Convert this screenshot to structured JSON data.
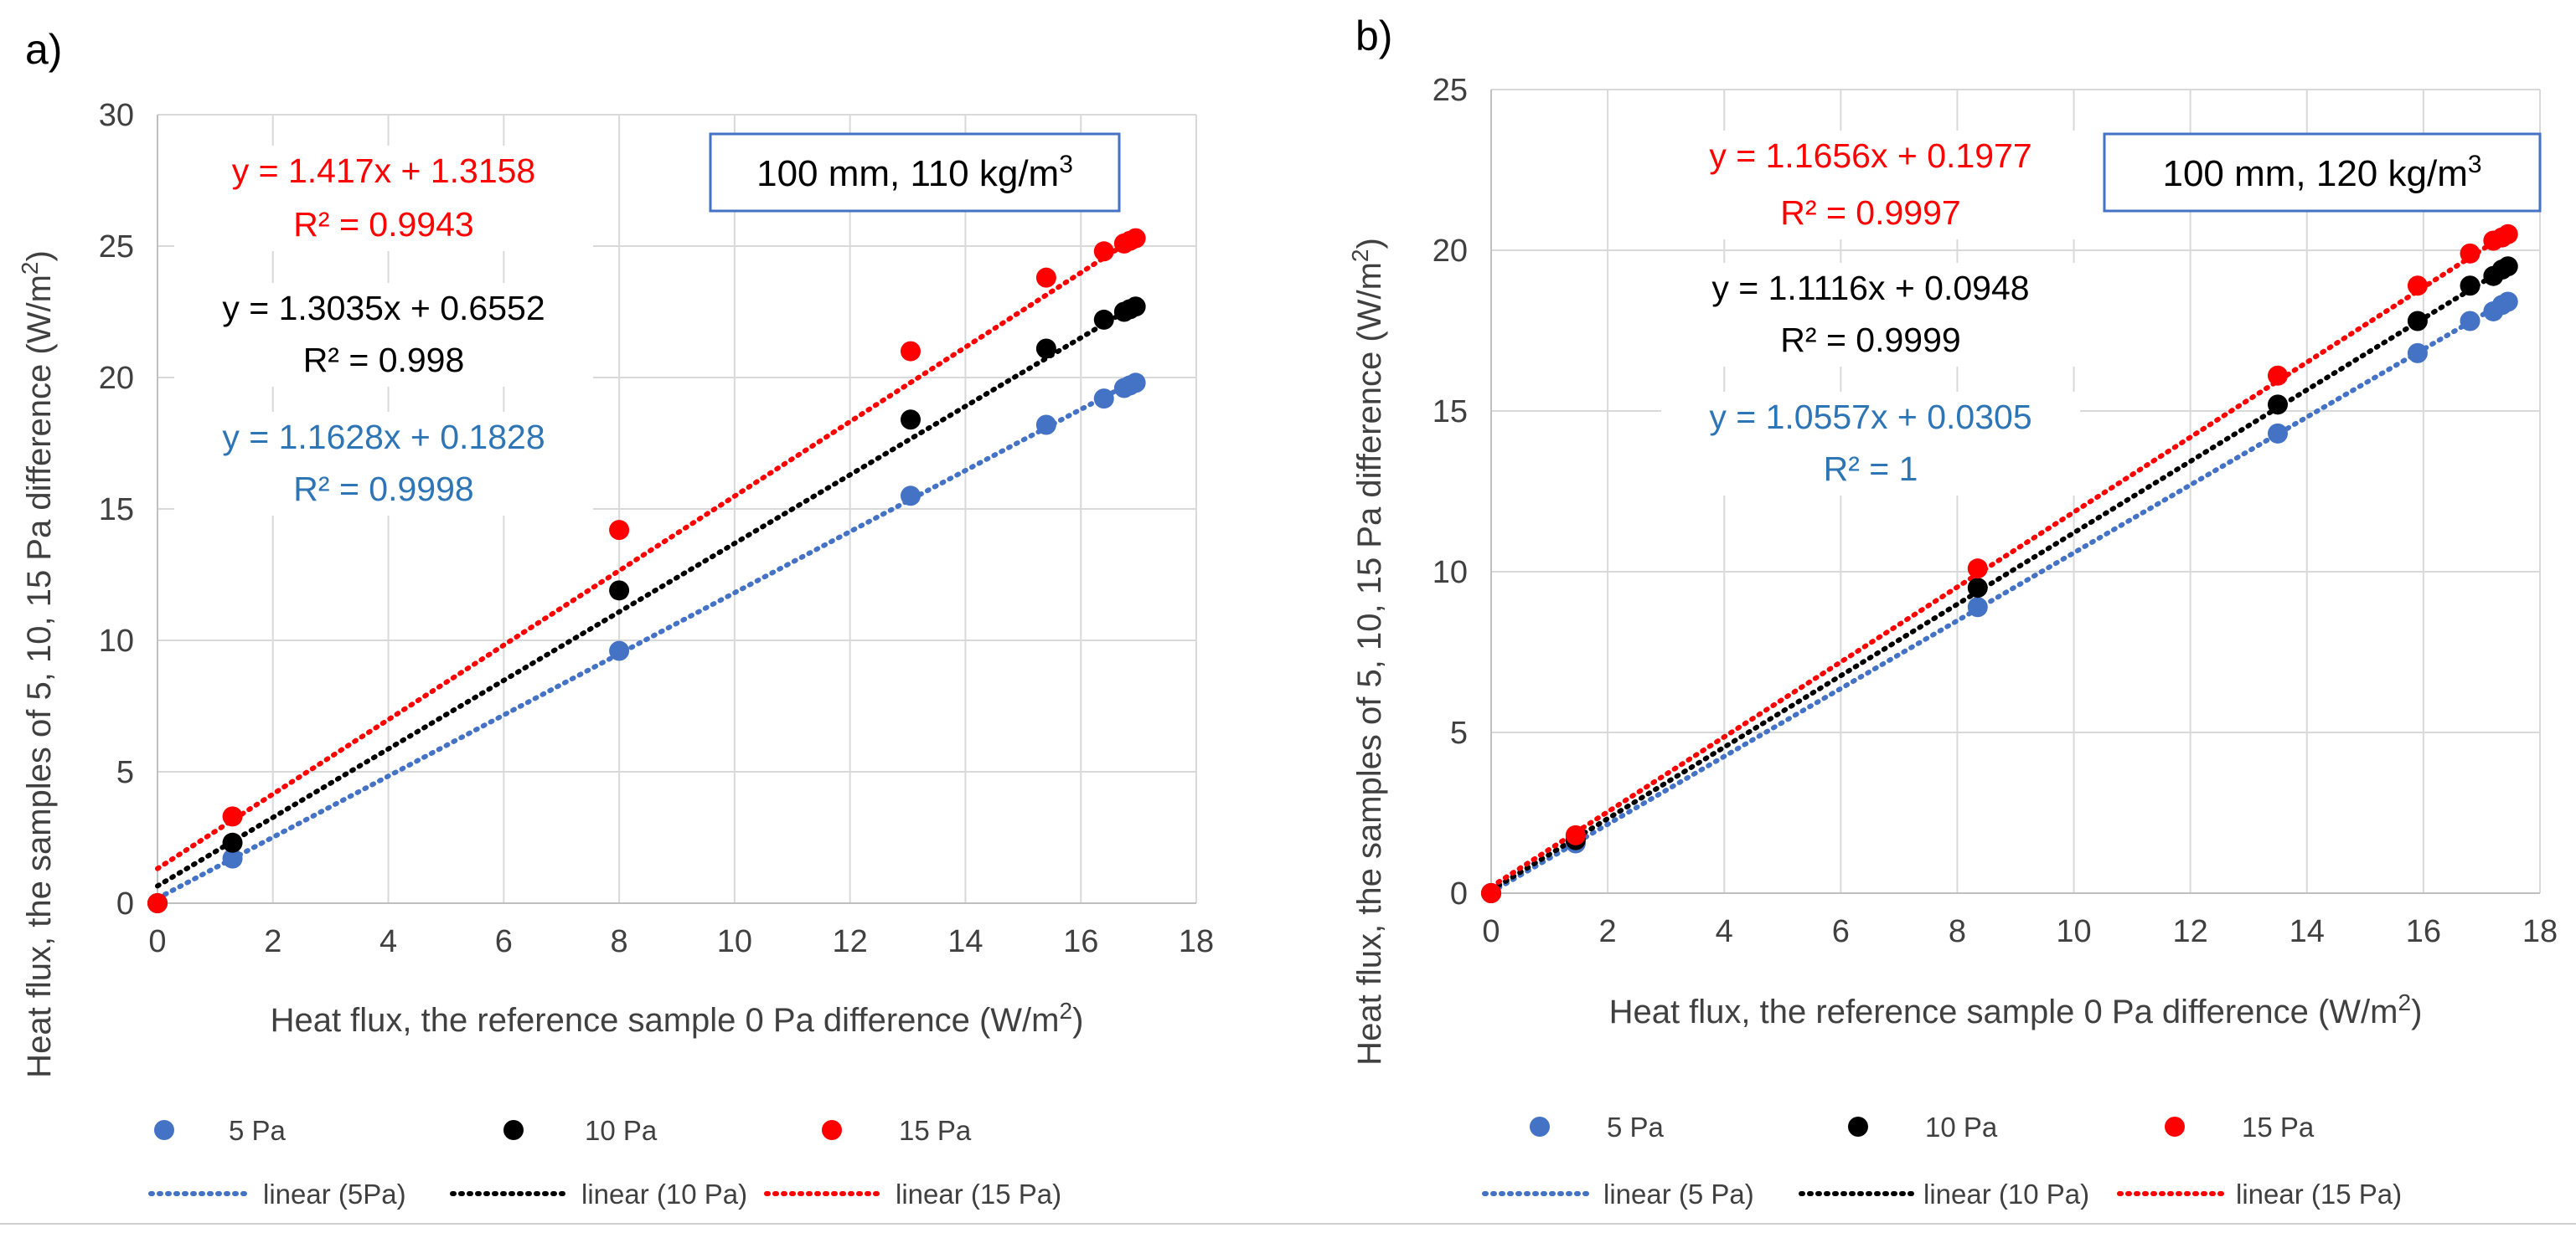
{
  "chart_data": [
    {
      "type": "scatter",
      "panel_label": "a)",
      "box_label": "100 mm, 110 kg/m",
      "box_label_sup": "3",
      "xlabel": "Heat flux, the reference sample 0 Pa difference (W/m",
      "xlabel_sup": "2",
      "xlabel_end": ")",
      "ylabel": "Heat flux, the samples of 5, 10, 15  Pa difference (W/m",
      "ylabel_sup": "2",
      "ylabel_end": ")",
      "xlim": [
        0,
        18
      ],
      "ylim": [
        0,
        30
      ],
      "xticks": [
        0,
        2,
        4,
        6,
        8,
        10,
        12,
        14,
        16,
        18
      ],
      "yticks": [
        0,
        5,
        10,
        15,
        20,
        25,
        30
      ],
      "grid": true,
      "series": [
        {
          "name": "5 Pa",
          "color": "#4472c4",
          "x": [
            0,
            1.3,
            8.0,
            13.05,
            15.4,
            16.4,
            16.75,
            16.85,
            16.95
          ],
          "y": [
            0,
            1.7,
            9.6,
            15.5,
            18.2,
            19.2,
            19.6,
            19.7,
            19.8
          ]
        },
        {
          "name": "10 Pa",
          "color": "#000000",
          "x": [
            0,
            1.3,
            8.0,
            13.05,
            15.4,
            16.4,
            16.75,
            16.85,
            16.95
          ],
          "y": [
            0,
            2.3,
            11.9,
            18.4,
            21.1,
            22.2,
            22.5,
            22.6,
            22.7
          ]
        },
        {
          "name": "15 Pa",
          "color": "#ff0000",
          "x": [
            0,
            1.3,
            8.0,
            13.05,
            15.4,
            16.4,
            16.75,
            16.85,
            16.95
          ],
          "y": [
            0,
            3.3,
            14.2,
            21.0,
            23.8,
            24.8,
            25.1,
            25.2,
            25.3
          ]
        }
      ],
      "trendlines": [
        {
          "name": "linear (5Pa)",
          "color": "#4472c4",
          "slope": 1.1628,
          "intercept": 0.1828
        },
        {
          "name": "linear (10 Pa)",
          "color": "#000000",
          "slope": 1.3035,
          "intercept": 0.6552
        },
        {
          "name": "linear (15 Pa)",
          "color": "#ff0000",
          "slope": 1.417,
          "intercept": 1.3158
        }
      ],
      "equations": [
        {
          "eq": "y = 1.417x + 1.3158",
          "r2": "R² = 0.9943",
          "color": "#ff0000"
        },
        {
          "eq": "y = 1.3035x + 0.6552",
          "r2": "R² = 0.998",
          "color": "#000000"
        },
        {
          "eq": "y = 1.1628x + 0.1828",
          "r2": "R² = 0.9998",
          "color": "#2e75b6"
        }
      ]
    },
    {
      "type": "scatter",
      "panel_label": "b)",
      "box_label": "100 mm, 120 kg/m",
      "box_label_sup": "3",
      "xlabel": "Heat flux, the reference sample 0 Pa difference (W/m",
      "xlabel_sup": "2",
      "xlabel_end": ")",
      "ylabel": "Heat flux, the samples of 5, 10, 15  Pa difference (W/m",
      "ylabel_sup": "2",
      "ylabel_end": ")",
      "xlim": [
        0,
        18
      ],
      "ylim": [
        0,
        25
      ],
      "xticks": [
        0,
        2,
        4,
        6,
        8,
        10,
        12,
        14,
        16,
        18
      ],
      "yticks": [
        0,
        5,
        10,
        15,
        20,
        25
      ],
      "grid": true,
      "series": [
        {
          "name": "5 Pa",
          "color": "#4472c4",
          "x": [
            0,
            1.45,
            8.35,
            13.5,
            15.9,
            16.8,
            17.2,
            17.35,
            17.45
          ],
          "y": [
            0,
            1.55,
            8.9,
            14.3,
            16.8,
            17.8,
            18.1,
            18.3,
            18.4
          ]
        },
        {
          "name": "10 Pa",
          "color": "#000000",
          "x": [
            0,
            1.45,
            8.35,
            13.5,
            15.9,
            16.8,
            17.2,
            17.35,
            17.45
          ],
          "y": [
            0,
            1.65,
            9.5,
            15.2,
            17.8,
            18.9,
            19.2,
            19.4,
            19.5
          ]
        },
        {
          "name": "15 Pa",
          "color": "#ff0000",
          "x": [
            0,
            1.45,
            8.35,
            13.5,
            15.9,
            16.8,
            17.2,
            17.35,
            17.45
          ],
          "y": [
            0,
            1.8,
            10.1,
            16.1,
            18.9,
            19.9,
            20.3,
            20.4,
            20.5
          ]
        }
      ],
      "trendlines": [
        {
          "name": "linear (5 Pa)",
          "color": "#4472c4",
          "slope": 1.0557,
          "intercept": 0.0305
        },
        {
          "name": "linear (10 Pa)",
          "color": "#000000",
          "slope": 1.1116,
          "intercept": 0.0948
        },
        {
          "name": "linear (15 Pa)",
          "color": "#ff0000",
          "slope": 1.1656,
          "intercept": 0.1977
        }
      ],
      "equations": [
        {
          "eq": "y = 1.1656x + 0.1977",
          "r2": "R² = 0.9997",
          "color": "#ff0000"
        },
        {
          "eq": "y = 1.1116x + 0.0948",
          "r2": "R² = 0.9999",
          "color": "#000000"
        },
        {
          "eq": "y = 1.0557x + 0.0305",
          "r2": "R² = 1",
          "color": "#2e75b6"
        }
      ]
    }
  ]
}
